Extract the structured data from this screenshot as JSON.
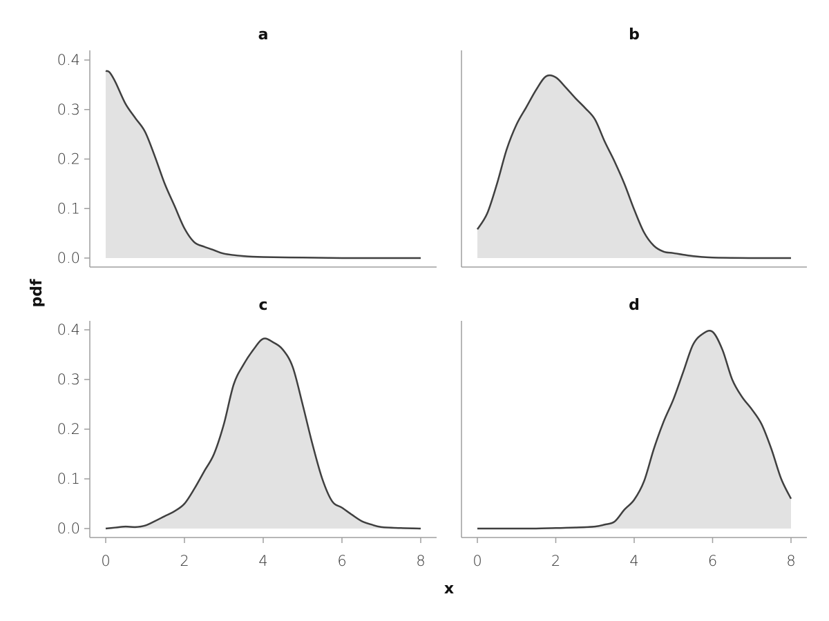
{
  "chart_data": {
    "type": "area",
    "xlabel": "x",
    "ylabel": "pdf",
    "xlim": [
      0,
      8
    ],
    "ylim": [
      0,
      0.4
    ],
    "x_ticks": [
      "0",
      "2",
      "4",
      "6",
      "8"
    ],
    "y_ticks": [
      "0.0",
      "0.1",
      "0.2",
      "0.3",
      "0.4"
    ],
    "grid": false,
    "fill_color": "#e2e2e2",
    "line_color": "#3f3f3f",
    "panels": [
      {
        "title": "a",
        "x": [
          0,
          0.1,
          0.25,
          0.5,
          0.75,
          1.0,
          1.25,
          1.5,
          1.75,
          2.0,
          2.25,
          2.5,
          2.75,
          3.0,
          3.5,
          4.0,
          5.0,
          6.0,
          7.0,
          8.0
        ],
        "y": [
          0.378,
          0.375,
          0.355,
          0.312,
          0.283,
          0.255,
          0.205,
          0.15,
          0.105,
          0.06,
          0.032,
          0.023,
          0.016,
          0.009,
          0.004,
          0.002,
          0.001,
          0.0,
          0.0,
          0.0
        ]
      },
      {
        "title": "b",
        "x": [
          0,
          0.25,
          0.5,
          0.75,
          1.0,
          1.25,
          1.5,
          1.75,
          2.0,
          2.25,
          2.5,
          2.75,
          3.0,
          3.25,
          3.5,
          3.75,
          4.0,
          4.25,
          4.5,
          4.75,
          5.0,
          5.5,
          6.0,
          7.0,
          8.0
        ],
        "y": [
          0.058,
          0.09,
          0.15,
          0.22,
          0.27,
          0.305,
          0.34,
          0.367,
          0.365,
          0.345,
          0.323,
          0.303,
          0.28,
          0.235,
          0.195,
          0.15,
          0.098,
          0.052,
          0.025,
          0.013,
          0.01,
          0.004,
          0.001,
          0.0,
          0.0
        ]
      },
      {
        "title": "c",
        "x": [
          0,
          0.25,
          0.5,
          0.75,
          1.0,
          1.25,
          1.5,
          1.75,
          2.0,
          2.25,
          2.5,
          2.75,
          3.0,
          3.25,
          3.5,
          3.75,
          4.0,
          4.25,
          4.5,
          4.75,
          5.0,
          5.25,
          5.5,
          5.75,
          6.0,
          6.25,
          6.5,
          6.75,
          7.0,
          7.5,
          8.0
        ],
        "y": [
          0.0,
          0.002,
          0.004,
          0.003,
          0.006,
          0.015,
          0.025,
          0.035,
          0.05,
          0.08,
          0.115,
          0.15,
          0.21,
          0.29,
          0.33,
          0.36,
          0.382,
          0.375,
          0.36,
          0.325,
          0.25,
          0.17,
          0.1,
          0.055,
          0.042,
          0.028,
          0.015,
          0.008,
          0.003,
          0.001,
          0.0
        ]
      },
      {
        "title": "d",
        "x": [
          0,
          1.0,
          1.5,
          2.0,
          2.5,
          3.0,
          3.25,
          3.5,
          3.75,
          4.0,
          4.25,
          4.5,
          4.75,
          5.0,
          5.25,
          5.5,
          5.75,
          6.0,
          6.25,
          6.5,
          6.75,
          7.0,
          7.25,
          7.5,
          7.75,
          8.0
        ],
        "y": [
          0.0,
          0.0,
          0.0,
          0.001,
          0.002,
          0.004,
          0.008,
          0.014,
          0.038,
          0.058,
          0.095,
          0.16,
          0.215,
          0.26,
          0.315,
          0.37,
          0.392,
          0.396,
          0.36,
          0.3,
          0.265,
          0.24,
          0.21,
          0.16,
          0.1,
          0.06
        ]
      }
    ]
  }
}
